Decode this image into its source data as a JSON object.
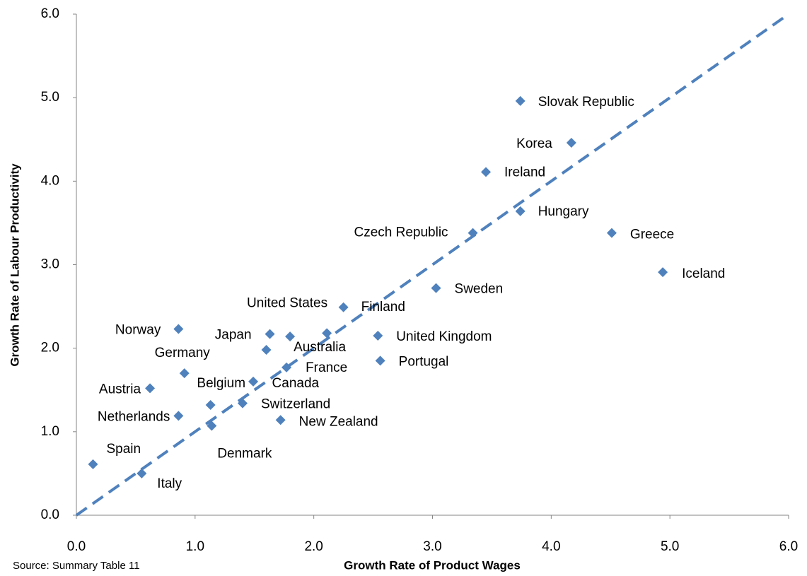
{
  "chart_data": {
    "type": "scatter",
    "x_label": "Growth Rate of Product Wages",
    "y_label": "Growth Rate of Labour Productivity",
    "source": "Source: Summary Table 11",
    "color": "#4f81bd",
    "xlim": [
      0,
      6
    ],
    "ylim": [
      0,
      6
    ],
    "xticks": [
      {
        "value": 0,
        "label": "0.0"
      },
      {
        "value": 1,
        "label": "1.0"
      },
      {
        "value": 2,
        "label": "2.0"
      },
      {
        "value": 3,
        "label": "3.0"
      },
      {
        "value": 4,
        "label": "4.0"
      },
      {
        "value": 5,
        "label": "5.0"
      },
      {
        "value": 6,
        "label": "6.0"
      }
    ],
    "yticks": [
      {
        "value": 0,
        "label": "0.0"
      },
      {
        "value": 1,
        "label": "1.0"
      },
      {
        "value": 2,
        "label": "2.0"
      },
      {
        "value": 3,
        "label": "3.0"
      },
      {
        "value": 4,
        "label": "4.0"
      },
      {
        "value": 5,
        "label": "5.0"
      },
      {
        "value": 6,
        "label": "6.0"
      }
    ],
    "labels": [
      "Slovak Republic",
      "Korea",
      "Ireland",
      "Hungary",
      "Czech Republic",
      "Greece",
      "Iceland",
      "Sweden",
      "Finland",
      "United States",
      "United Kingdom",
      "Norway",
      "Japan",
      "Australia",
      null,
      "Germany",
      "Austria",
      "Netherlands",
      "Belgium",
      "Switzerland",
      "New Zealand",
      "Denmark",
      "Spain",
      "Italy",
      "France",
      "Portugal",
      "Canada"
    ],
    "x": [
      3.74,
      4.17,
      3.45,
      3.74,
      3.34,
      4.51,
      4.94,
      3.03,
      2.25,
      2.11,
      2.54,
      0.86,
      1.63,
      1.8,
      1.13,
      0.91,
      0.62,
      0.86,
      1.49,
      1.4,
      1.72,
      1.14,
      0.14,
      0.55,
      1.77,
      2.56,
      1.6
    ],
    "y": [
      4.96,
      4.46,
      4.11,
      3.64,
      3.38,
      3.38,
      2.91,
      2.72,
      2.49,
      2.18,
      2.15,
      2.23,
      2.17,
      2.14,
      1.32,
      1.7,
      1.52,
      1.19,
      1.6,
      1.34,
      1.14,
      1.07,
      0.61,
      0.5,
      1.77,
      1.85,
      1.98
    ],
    "trend_line": {
      "color": "#4f81bd",
      "x": [
        0,
        6
      ],
      "y": [
        0,
        6
      ]
    }
  }
}
